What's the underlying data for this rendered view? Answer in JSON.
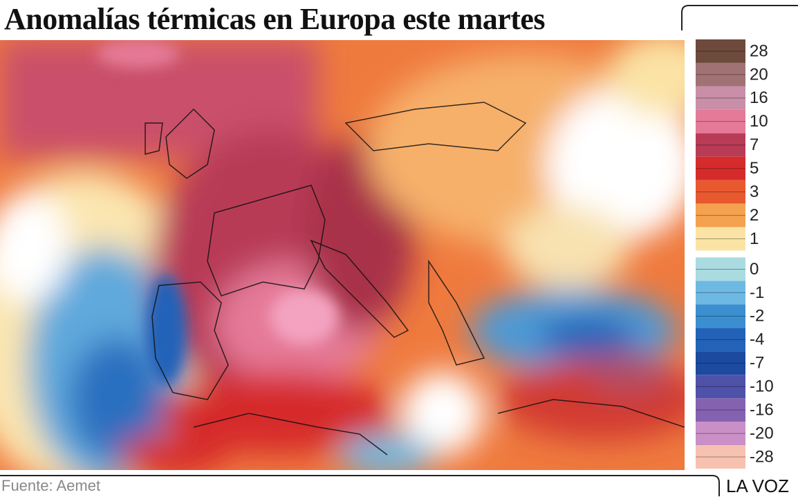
{
  "title": "Anomalías térmicas en Europa este martes",
  "legend": {
    "items": [
      {
        "label": "28",
        "color": "#6e4a3c"
      },
      {
        "label": "20",
        "color": "#a07274"
      },
      {
        "label": "16",
        "color": "#c98fa8"
      },
      {
        "label": "10",
        "color": "#e57a98"
      },
      {
        "label": "7",
        "color": "#b93c57"
      },
      {
        "label": "5",
        "color": "#d62b2b"
      },
      {
        "label": "3",
        "color": "#e9592f"
      },
      {
        "label": "2",
        "color": "#f4a24f"
      },
      {
        "label": "1",
        "color": "#fae3a4"
      },
      {
        "label": "0",
        "color": "#a9dbe0"
      },
      {
        "label": "-1",
        "color": "#6db9e3"
      },
      {
        "label": "-2",
        "color": "#3b8fd0"
      },
      {
        "label": "-4",
        "color": "#2262b8"
      },
      {
        "label": "-7",
        "color": "#1b4a9e"
      },
      {
        "label": "-10",
        "color": "#4f52a9"
      },
      {
        "label": "-16",
        "color": "#8462b1"
      },
      {
        "label": "-20",
        "color": "#c98fc6"
      },
      {
        "label": "-28",
        "color": "#f7c1b0"
      }
    ]
  },
  "source": "Fuente: Aemet",
  "brand": "LA VOZ"
}
